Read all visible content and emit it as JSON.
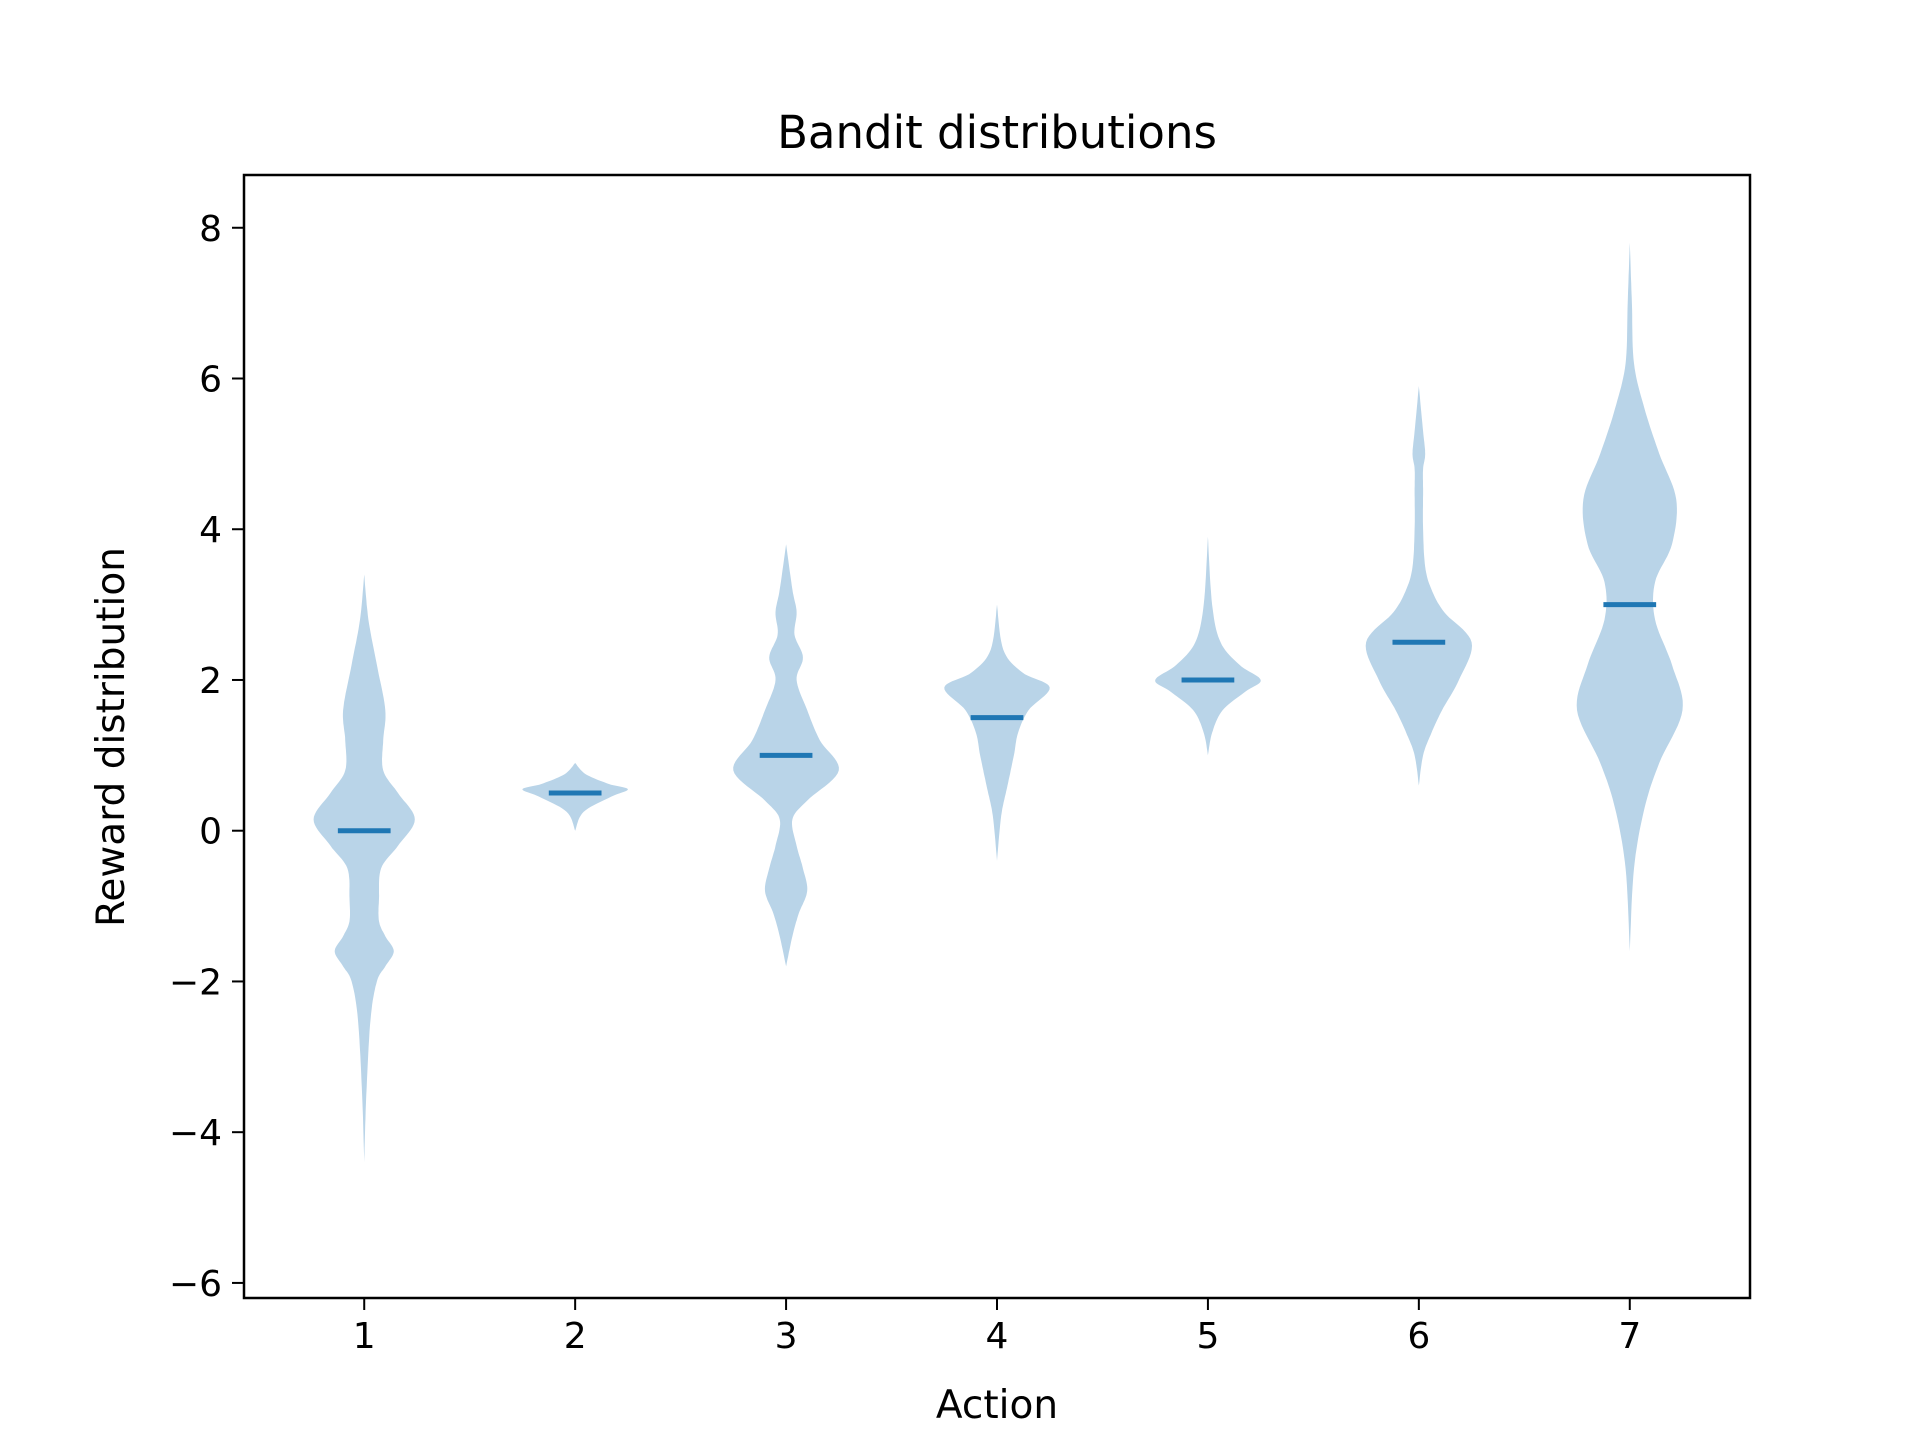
{
  "chart_data": {
    "type": "violin",
    "title": "Bandit distributions",
    "xlabel": "Action",
    "ylabel": "Reward distribution",
    "xlim": [
      0.43,
      7.57
    ],
    "ylim": [
      -6.2,
      8.7
    ],
    "x_ticks": [
      "1",
      "2",
      "3",
      "4",
      "5",
      "6",
      "7"
    ],
    "y_ticks": [
      {
        "value": -6,
        "label": "−6"
      },
      {
        "value": -4,
        "label": "−4"
      },
      {
        "value": -2,
        "label": "−2"
      },
      {
        "value": 0,
        "label": "0"
      },
      {
        "value": 2,
        "label": "2"
      },
      {
        "value": 4,
        "label": "4"
      },
      {
        "value": 6,
        "label": "6"
      },
      {
        "value": 8,
        "label": "8"
      }
    ],
    "grid": false,
    "colors": {
      "body": "#b9d4e8",
      "mean": "#1f77b4"
    },
    "violins": [
      {
        "action": 1,
        "mean": 0.0,
        "profile": [
          [
            -4.4,
            0.0
          ],
          [
            -3.5,
            0.01
          ],
          [
            -2.5,
            0.03
          ],
          [
            -2.0,
            0.06
          ],
          [
            -1.8,
            0.1
          ],
          [
            -1.6,
            0.14
          ],
          [
            -1.4,
            0.1
          ],
          [
            -1.2,
            0.07
          ],
          [
            -0.9,
            0.07
          ],
          [
            -0.5,
            0.08
          ],
          [
            -0.2,
            0.16
          ],
          [
            0.15,
            0.24
          ],
          [
            0.5,
            0.16
          ],
          [
            0.8,
            0.09
          ],
          [
            1.2,
            0.09
          ],
          [
            1.6,
            0.1
          ],
          [
            2.2,
            0.06
          ],
          [
            2.8,
            0.02
          ],
          [
            3.4,
            0.0
          ]
        ]
      },
      {
        "action": 2,
        "mean": 0.5,
        "profile": [
          [
            0.0,
            0.0
          ],
          [
            0.25,
            0.04
          ],
          [
            0.45,
            0.17
          ],
          [
            0.55,
            0.25
          ],
          [
            0.62,
            0.16
          ],
          [
            0.75,
            0.05
          ],
          [
            0.9,
            0.0
          ]
        ]
      },
      {
        "action": 3,
        "mean": 1.0,
        "profile": [
          [
            -1.8,
            0.0
          ],
          [
            -1.4,
            0.03
          ],
          [
            -1.1,
            0.06
          ],
          [
            -0.8,
            0.1
          ],
          [
            -0.5,
            0.08
          ],
          [
            -0.2,
            0.05
          ],
          [
            0.15,
            0.03
          ],
          [
            0.4,
            0.1
          ],
          [
            0.8,
            0.25
          ],
          [
            1.2,
            0.16
          ],
          [
            1.6,
            0.1
          ],
          [
            2.0,
            0.05
          ],
          [
            2.3,
            0.08
          ],
          [
            2.6,
            0.04
          ],
          [
            2.9,
            0.05
          ],
          [
            3.2,
            0.03
          ],
          [
            3.8,
            0.0
          ]
        ]
      },
      {
        "action": 4,
        "mean": 1.5,
        "profile": [
          [
            -0.4,
            0.0
          ],
          [
            0.2,
            0.02
          ],
          [
            0.6,
            0.05
          ],
          [
            1.0,
            0.08
          ],
          [
            1.3,
            0.1
          ],
          [
            1.6,
            0.15
          ],
          [
            1.9,
            0.25
          ],
          [
            2.1,
            0.12
          ],
          [
            2.4,
            0.03
          ],
          [
            3.0,
            0.0
          ]
        ]
      },
      {
        "action": 5,
        "mean": 2.0,
        "profile": [
          [
            1.0,
            0.0
          ],
          [
            1.3,
            0.02
          ],
          [
            1.6,
            0.07
          ],
          [
            1.85,
            0.18
          ],
          [
            2.0,
            0.25
          ],
          [
            2.2,
            0.15
          ],
          [
            2.5,
            0.06
          ],
          [
            3.0,
            0.02
          ],
          [
            3.9,
            0.0
          ]
        ]
      },
      {
        "action": 6,
        "mean": 2.5,
        "profile": [
          [
            0.6,
            0.0
          ],
          [
            1.0,
            0.02
          ],
          [
            1.3,
            0.06
          ],
          [
            1.6,
            0.11
          ],
          [
            2.0,
            0.19
          ],
          [
            2.5,
            0.25
          ],
          [
            2.9,
            0.12
          ],
          [
            3.2,
            0.06
          ],
          [
            3.5,
            0.03
          ],
          [
            4.0,
            0.02
          ],
          [
            4.5,
            0.02
          ],
          [
            4.8,
            0.02
          ],
          [
            5.0,
            0.03
          ],
          [
            5.3,
            0.02
          ],
          [
            5.9,
            0.0
          ]
        ]
      },
      {
        "action": 7,
        "mean": 3.0,
        "profile": [
          [
            -1.6,
            0.0
          ],
          [
            -0.5,
            0.02
          ],
          [
            0.3,
            0.07
          ],
          [
            0.9,
            0.14
          ],
          [
            1.6,
            0.25
          ],
          [
            2.2,
            0.2
          ],
          [
            2.8,
            0.12
          ],
          [
            3.3,
            0.12
          ],
          [
            3.8,
            0.2
          ],
          [
            4.4,
            0.22
          ],
          [
            5.0,
            0.14
          ],
          [
            5.6,
            0.07
          ],
          [
            6.2,
            0.02
          ],
          [
            7.0,
            0.01
          ],
          [
            7.8,
            0.0
          ]
        ]
      }
    ]
  }
}
